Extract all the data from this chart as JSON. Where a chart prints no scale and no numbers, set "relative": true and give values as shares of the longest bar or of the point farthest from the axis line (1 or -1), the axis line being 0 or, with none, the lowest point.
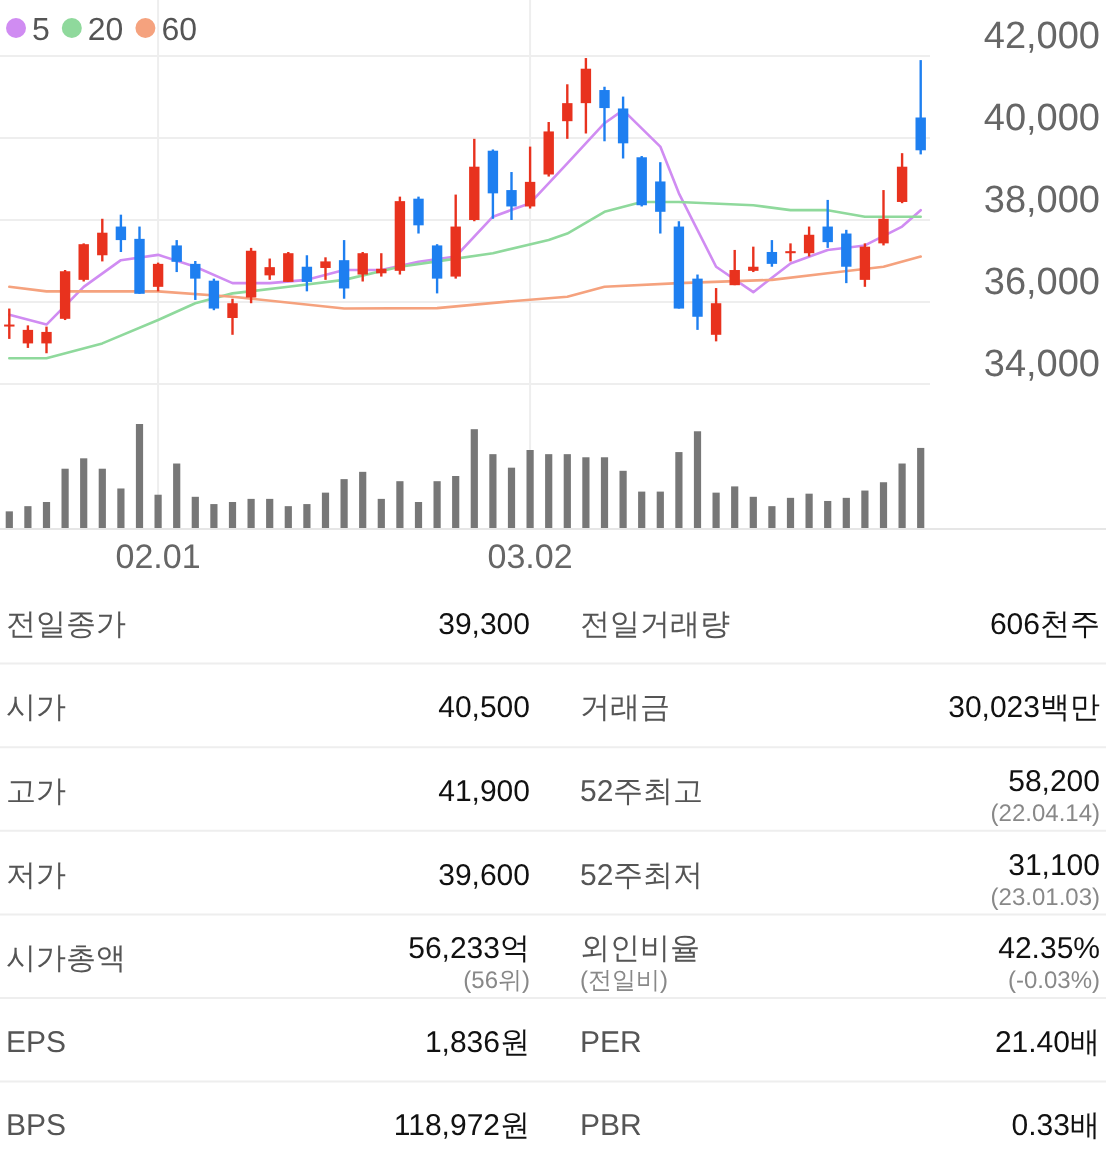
{
  "chart_data": [
    {
      "type": "candlestick",
      "categories": [
        null,
        null,
        null,
        null,
        null,
        null,
        null,
        null,
        "02.01",
        null,
        null,
        null,
        null,
        null,
        null,
        null,
        null,
        null,
        null,
        null,
        null,
        null,
        null,
        null,
        null,
        null,
        null,
        null,
        "03.02",
        null,
        null,
        null,
        null,
        null,
        null,
        null,
        null,
        null,
        null,
        null,
        null,
        null,
        null,
        null,
        null,
        null,
        null,
        null,
        null,
        null
      ],
      "ohlc": [
        [
          35410,
          35840,
          35100,
          35450
        ],
        [
          34990,
          35430,
          34880,
          35320
        ],
        [
          34990,
          35400,
          34750,
          35270
        ],
        [
          35590,
          36780,
          35560,
          36750
        ],
        [
          36540,
          37430,
          36500,
          37410
        ],
        [
          37140,
          38030,
          36990,
          37690
        ],
        [
          37840,
          38130,
          37220,
          37510
        ],
        [
          37540,
          37840,
          36200,
          36200
        ],
        [
          36370,
          36960,
          36260,
          36930
        ],
        [
          37380,
          37510,
          36730,
          36980
        ],
        [
          36930,
          37000,
          36050,
          36570
        ],
        [
          36520,
          36570,
          35800,
          35840
        ],
        [
          35610,
          36080,
          35200,
          35970
        ],
        [
          36110,
          37320,
          35970,
          37250
        ],
        [
          36650,
          37060,
          36540,
          36850
        ],
        [
          36490,
          37220,
          36490,
          37190
        ],
        [
          36860,
          37140,
          36260,
          36490
        ],
        [
          36830,
          37090,
          36540,
          36990
        ],
        [
          37020,
          37510,
          36080,
          36330
        ],
        [
          36670,
          37220,
          36500,
          37190
        ],
        [
          36700,
          37190,
          36620,
          36810
        ],
        [
          36760,
          38570,
          36670,
          38460
        ],
        [
          38520,
          38570,
          37670,
          37870
        ],
        [
          37380,
          37410,
          36210,
          36570
        ],
        [
          36620,
          38620,
          36570,
          37840
        ],
        [
          38000,
          39980,
          37970,
          39300
        ],
        [
          39690,
          39720,
          38030,
          38650
        ],
        [
          38730,
          39170,
          38000,
          38330
        ],
        [
          38330,
          39790,
          38280,
          38930
        ],
        [
          39110,
          40390,
          39060,
          40160
        ],
        [
          40410,
          41310,
          39980,
          40850
        ],
        [
          40850,
          41950,
          40110,
          41690
        ],
        [
          41170,
          41250,
          39920,
          40730
        ],
        [
          40720,
          41010,
          39500,
          39870
        ],
        [
          39530,
          39560,
          38330,
          38360
        ],
        [
          38940,
          39410,
          37670,
          38200
        ],
        [
          37840,
          37970,
          35840,
          35840
        ],
        [
          36570,
          36670,
          35320,
          35640
        ],
        [
          35200,
          36340,
          35040,
          35970
        ],
        [
          36410,
          37270,
          36410,
          36780
        ],
        [
          36760,
          37350,
          36730,
          36860
        ],
        [
          37220,
          37510,
          36860,
          36930
        ],
        [
          37190,
          37430,
          36990,
          37240
        ],
        [
          37190,
          37840,
          37110,
          37640
        ],
        [
          37840,
          38490,
          37320,
          37460
        ],
        [
          37670,
          37760,
          36460,
          36860
        ],
        [
          36540,
          37430,
          36370,
          37350
        ],
        [
          37430,
          38730,
          37380,
          38030
        ],
        [
          38440,
          39630,
          38410,
          39300
        ],
        [
          40500,
          41900,
          39600,
          39700
        ]
      ],
      "colors": [
        "#e8321e",
        "#e8321e",
        "#e8321e",
        "#e8321e",
        "#e8321e",
        "#e8321e",
        "#1e7ff0",
        "#1e7ff0",
        "#e8321e",
        "#1e7ff0",
        "#1e7ff0",
        "#1e7ff0",
        "#e8321e",
        "#e8321e",
        "#e8321e",
        "#e8321e",
        "#1e7ff0",
        "#e8321e",
        "#1e7ff0",
        "#e8321e",
        "#e8321e",
        "#e8321e",
        "#1e7ff0",
        "#1e7ff0",
        "#e8321e",
        "#e8321e",
        "#1e7ff0",
        "#1e7ff0",
        "#e8321e",
        "#e8321e",
        "#e8321e",
        "#e8321e",
        "#1e7ff0",
        "#1e7ff0",
        "#1e7ff0",
        "#1e7ff0",
        "#1e7ff0",
        "#1e7ff0",
        "#e8321e",
        "#e8321e",
        "#e8321e",
        "#1e7ff0",
        "#e8321e",
        "#e8321e",
        "#1e7ff0",
        "#1e7ff0",
        "#e8321e",
        "#e8321e",
        "#e8321e",
        "#1e7ff0"
      ],
      "series": [
        {
          "type": "line",
          "name": "5",
          "color": "#d08cf2",
          "values": [
            35690,
            null,
            35450,
            null,
            36370,
            null,
            37020,
            null,
            37150,
            null,
            36860,
            null,
            36460,
            null,
            36460,
            null,
            36540,
            null,
            36780,
            null,
            36780,
            null,
            36980,
            null,
            37110,
            null,
            38080,
            null,
            38410,
            null,
            39380,
            null,
            40360,
            40680,
            null,
            39790,
            38650,
            null,
            36860,
            null,
            36240,
            null,
            36940,
            null,
            37270,
            null,
            37380,
            null,
            37840,
            38240
          ]
        },
        {
          "type": "line",
          "name": "20",
          "color": "#8fd99c",
          "values": [
            34630,
            null,
            34630,
            null,
            null,
            34990,
            null,
            null,
            35560,
            null,
            35970,
            null,
            36210,
            null,
            null,
            36370,
            null,
            null,
            36540,
            null,
            null,
            36860,
            null,
            36990,
            null,
            null,
            37190,
            null,
            null,
            37510,
            37670,
            null,
            38200,
            null,
            38440,
            null,
            38440,
            null,
            null,
            null,
            38360,
            null,
            38240,
            null,
            38240,
            null,
            38080,
            null,
            null,
            38080
          ]
        },
        {
          "type": "line",
          "name": "60",
          "color": "#f5a27e",
          "values": [
            36370,
            null,
            36260,
            null,
            null,
            null,
            null,
            null,
            36260,
            null,
            null,
            null,
            36130,
            null,
            null,
            null,
            null,
            null,
            35840,
            null,
            null,
            null,
            null,
            35850,
            null,
            null,
            null,
            36020,
            null,
            null,
            36130,
            null,
            36370,
            null,
            null,
            null,
            36460,
            null,
            null,
            null,
            null,
            36540,
            null,
            null,
            36700,
            null,
            null,
            36860,
            null,
            37110
          ]
        }
      ],
      "ylim": [
        34000,
        42000
      ],
      "yticks": [
        {
          "value": 34000,
          "label": "34,000"
        },
        {
          "value": 36000,
          "label": "36,000"
        },
        {
          "value": 38000,
          "label": "38,000"
        },
        {
          "value": 40000,
          "label": "40,000"
        },
        {
          "value": 42000,
          "label": "42,000"
        }
      ],
      "tick_labels": "y",
      "grid": true,
      "legend": "top left"
    },
    {
      "type": "bar",
      "relative": true,
      "color": "#777777",
      "categories": [
        null,
        null,
        null,
        null,
        null,
        null,
        null,
        null,
        "02.01",
        null,
        null,
        null,
        null,
        null,
        null,
        null,
        null,
        null,
        null,
        null,
        null,
        null,
        null,
        null,
        null,
        null,
        null,
        null,
        "03.02",
        null,
        null,
        null,
        null,
        null,
        null,
        null,
        null,
        null,
        null,
        null,
        null,
        null,
        null,
        null,
        null,
        null,
        null,
        null,
        null,
        null
      ],
      "values": [
        0.16,
        0.21,
        0.25,
        0.57,
        0.67,
        0.57,
        0.38,
        1,
        0.32,
        0.62,
        0.3,
        0.23,
        0.25,
        0.28,
        0.28,
        0.21,
        0.23,
        0.34,
        0.47,
        0.54,
        0.28,
        0.45,
        0.25,
        0.45,
        0.5,
        0.95,
        0.71,
        0.58,
        0.75,
        0.71,
        0.71,
        0.68,
        0.68,
        0.55,
        0.35,
        0.35,
        0.73,
        0.93,
        0.34,
        0.4,
        0.3,
        0.21,
        0.29,
        0.33,
        0.26,
        0.29,
        0.36,
        0.44,
        0.62,
        0.77
      ],
      "tick_labels": "x",
      "grid": "x"
    },
    {
      "type": "other",
      "annotations": [
        "전일종가",
        "39,300",
        "전일거래량",
        "606천주",
        "시가",
        "40,500",
        "거래금",
        "30,023백만",
        "고가",
        "41,900",
        "52주최고",
        "58,200",
        "(22.04.14)",
        "저가",
        "39,600",
        "52주최저",
        "31,100",
        "(23.01.03)",
        "시가총액",
        "56,233억",
        "(56위)",
        "외인비율",
        "(전일비)",
        "42.35%",
        "(-0.03%)",
        "EPS",
        "1,836원",
        "PER",
        "21.40배",
        "BPS",
        "118,972원",
        "PBR",
        "0.33배"
      ]
    }
  ]
}
